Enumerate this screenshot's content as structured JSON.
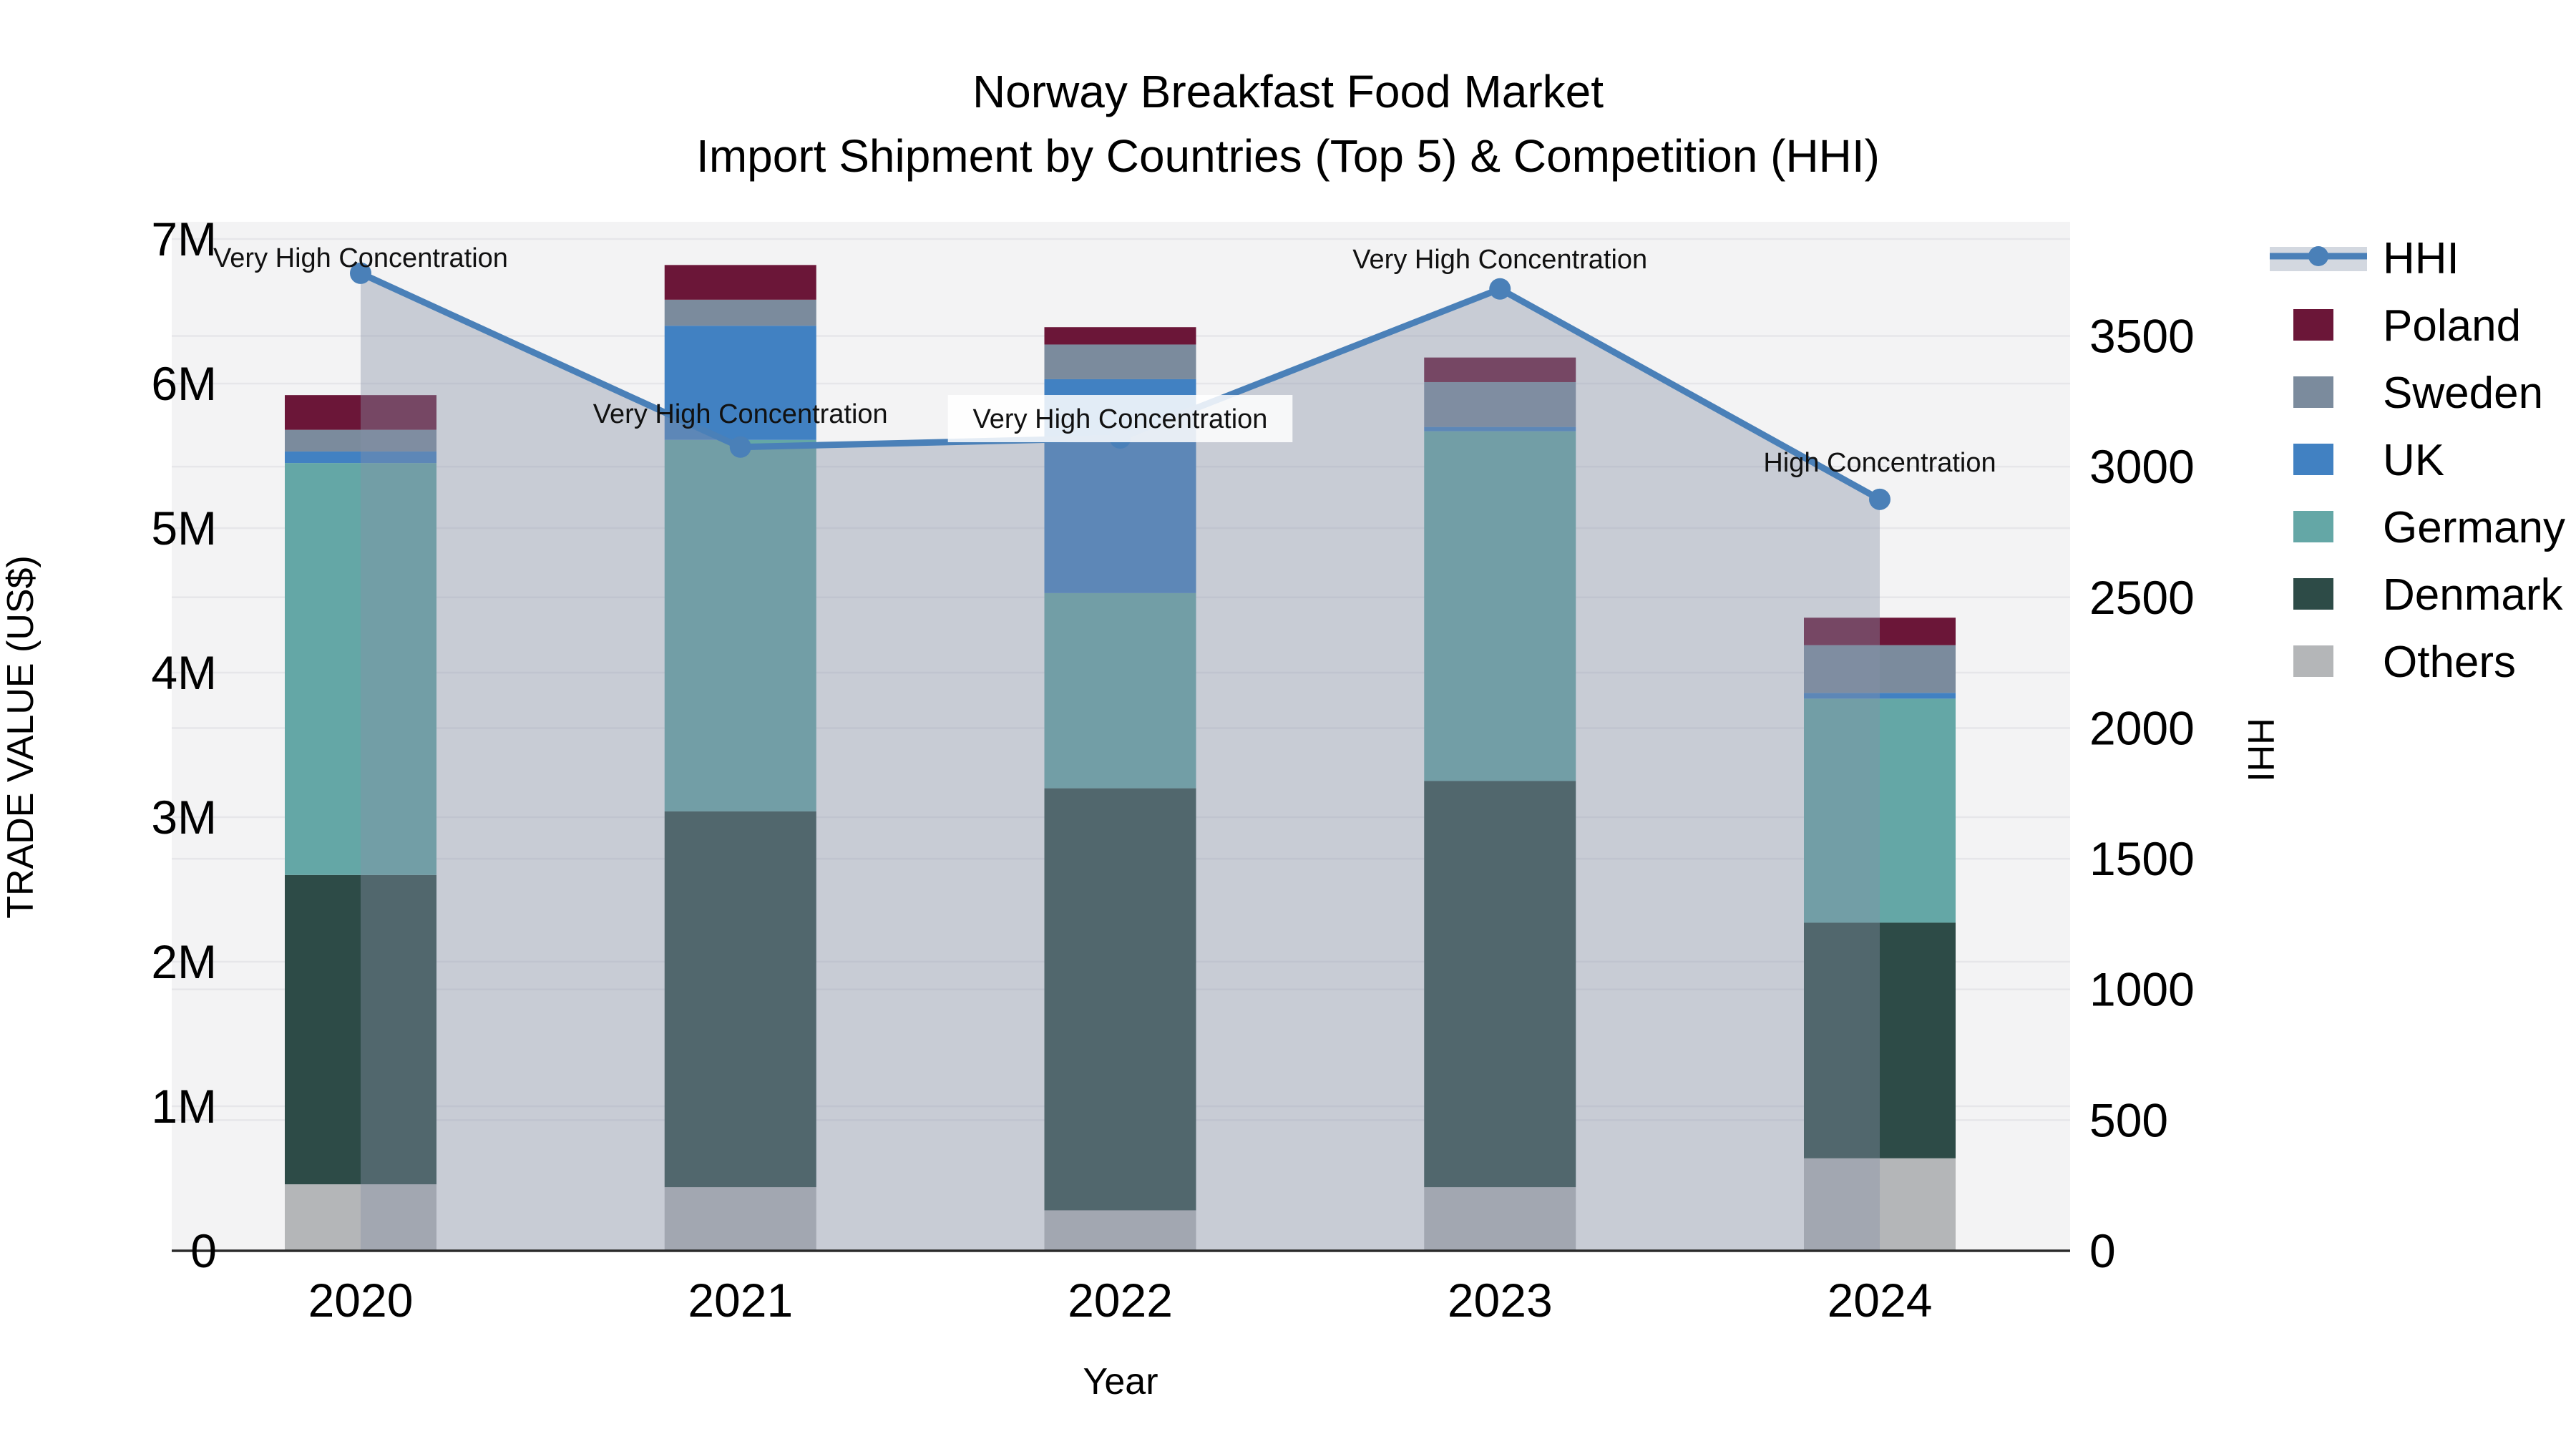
{
  "title": {
    "line1": "Norway Breakfast Food Market",
    "line2": "Import Shipment by Countries (Top 5) & Competition (HHI)"
  },
  "axes": {
    "x_label": "Year",
    "y_left_label": "TRADE VALUE (US$)",
    "y_right_label": "HHI",
    "y_left_tick_labels": [
      "0",
      "1M",
      "2M",
      "3M",
      "4M",
      "5M",
      "6M",
      "7M"
    ],
    "y_right_tick_labels": [
      "0",
      "500",
      "1000",
      "1500",
      "2000",
      "2500",
      "3000",
      "3500"
    ],
    "x_tick_labels": [
      "2020",
      "2021",
      "2022",
      "2023",
      "2024"
    ]
  },
  "legend": {
    "position": "right",
    "items": [
      {
        "label": "HHI",
        "type": "line",
        "color_key": "hhi_line"
      },
      {
        "label": "Poland",
        "type": "patch",
        "color_key": "poland"
      },
      {
        "label": "Sweden",
        "type": "patch",
        "color_key": "sweden"
      },
      {
        "label": "UK",
        "type": "patch",
        "color_key": "uk"
      },
      {
        "label": "Germany",
        "type": "patch",
        "color_key": "germany"
      },
      {
        "label": "Denmark",
        "type": "patch",
        "color_key": "denmark"
      },
      {
        "label": "Others",
        "type": "patch",
        "color_key": "others"
      }
    ]
  },
  "chart_data": {
    "type": "bar",
    "stacked": true,
    "title": "Norway Breakfast Food Market — Import Shipment by Countries (Top 5) & Competition (HHI)",
    "categories": [
      "2020",
      "2021",
      "2022",
      "2023",
      "2024"
    ],
    "value_unit": "million US$",
    "series": [
      {
        "name": "Others",
        "color_key": "others",
        "values": [
          0.46,
          0.44,
          0.28,
          0.44,
          0.64
        ]
      },
      {
        "name": "Denmark",
        "color_key": "denmark",
        "values": [
          2.14,
          2.6,
          2.92,
          2.81,
          1.63
        ]
      },
      {
        "name": "Germany",
        "color_key": "germany",
        "values": [
          2.85,
          2.57,
          1.35,
          2.42,
          1.55
        ]
      },
      {
        "name": "UK",
        "color_key": "uk",
        "values": [
          0.08,
          0.79,
          1.48,
          0.03,
          0.04
        ]
      },
      {
        "name": "Sweden",
        "color_key": "sweden",
        "values": [
          0.15,
          0.18,
          0.24,
          0.31,
          0.33
        ]
      },
      {
        "name": "Poland",
        "color_key": "poland",
        "values": [
          0.24,
          0.24,
          0.12,
          0.17,
          0.19
        ]
      }
    ],
    "bar_totals_m": [
      5.92,
      6.82,
      6.39,
      6.18,
      4.38
    ],
    "line_series": {
      "name": "HHI",
      "axis": "right",
      "values": [
        3740,
        3075,
        3110,
        3680,
        2875
      ],
      "area_fill": true
    },
    "annotations": [
      {
        "category": "2020",
        "text": "Very High Concentration",
        "boxed": false,
        "label_y": 360
      },
      {
        "category": "2021",
        "text": "Very High Concentration",
        "boxed": false,
        "label_y": 578
      },
      {
        "category": "2022",
        "text": "Very High Concentration",
        "boxed": true,
        "label_y": 585
      },
      {
        "category": "2023",
        "text": "Very High Concentration",
        "boxed": false,
        "label_y": 362
      },
      {
        "category": "2024",
        "text": "High Concentration",
        "boxed": false,
        "label_y": 646
      }
    ],
    "xlabel": "Year",
    "ylabel_left": "TRADE VALUE (US$)",
    "ylabel_right": "HHI",
    "ylim_left": [
      0,
      7120000
    ],
    "ylim_right": [
      0,
      3940
    ],
    "grid": true,
    "legend_position": "right"
  },
  "colors": {
    "poland": "#6b1638",
    "sweden": "#7b8b9d",
    "uk": "#4181c2",
    "germany": "#64a7a6",
    "denmark": "#2d4b47",
    "others": "#b4b6b8",
    "hhi_line": "#4a80b8",
    "hhi_fill": "rgba(134,145,168,0.40)",
    "hhi_legend_band": "#d3d8e0",
    "plot_bg": "#f3f3f4",
    "grid": "#e6e6e9",
    "axis_line": "#2b2b2b",
    "annotation_box": "rgba(255,255,255,0.85)"
  }
}
